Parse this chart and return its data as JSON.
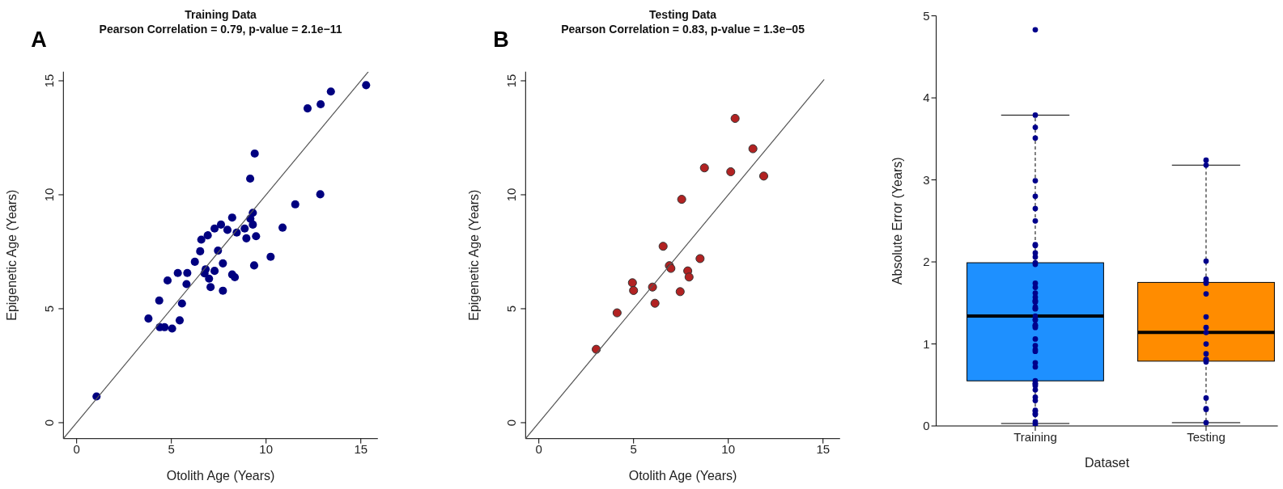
{
  "chart_data": [
    {
      "type": "scatter",
      "title": "Training Data",
      "subtitle": "Pearson Correlation = 0.79, p-value = 2.1e−11",
      "xlabel": "Otolith Age (Years)",
      "ylabel": "Epigenetic Age (Years)",
      "annotations": [
        "A"
      ],
      "xlim": [
        -0.7,
        15.9
      ],
      "ylim": [
        -0.7,
        15.4
      ],
      "xticks": [
        0,
        5,
        10,
        15
      ],
      "yticks": [
        0,
        5,
        10,
        15
      ],
      "series": [
        {
          "marker": "circle",
          "color": "#000080",
          "x": [
            1.05,
            3.79,
            4.36,
            4.39,
            4.64,
            5.04,
            5.44,
            5.56,
            4.8,
            5.34,
            5.84,
            5.8,
            6.24,
            6.52,
            6.58,
            6.92,
            7.28,
            7.62,
            7.96,
            8.21,
            8.45,
            8.87,
            8.96,
            9.17,
            9.3,
            9.3,
            9.47,
            7.46,
            7.72,
            6.81,
            6.75,
            6.99,
            7.28,
            7.07,
            7.72,
            8.21,
            8.35,
            9.37,
            10.24,
            10.87,
            11.54,
            12.86,
            9.16,
            9.4,
            12.19,
            12.88,
            13.42,
            15.28
          ],
          "values": [
            1.15,
            4.57,
            5.36,
            4.19,
            4.19,
            4.13,
            4.49,
            5.23,
            6.24,
            6.57,
            6.57,
            6.08,
            7.06,
            7.52,
            8.03,
            8.22,
            8.52,
            8.69,
            8.46,
            9.0,
            8.34,
            8.52,
            8.09,
            8.95,
            9.21,
            8.69,
            8.18,
            7.55,
            6.99,
            6.73,
            6.55,
            6.32,
            6.66,
            5.95,
            5.79,
            6.5,
            6.38,
            6.9,
            7.28,
            8.56,
            9.58,
            10.02,
            10.71,
            11.81,
            13.79,
            13.97,
            14.53,
            14.81
          ]
        },
        {
          "type": "line",
          "color": "#555555",
          "x": [
            -0.7,
            15.4
          ],
          "values": [
            -0.7,
            15.4
          ]
        }
      ]
    },
    {
      "type": "scatter",
      "title": "Testing Data",
      "subtitle": "Pearson Correlation = 0.83, p-value = 1.3e−05",
      "xlabel": "Otolith Age (Years)",
      "ylabel": "Epigenetic Age (Years)",
      "annotations": [
        "B"
      ],
      "xlim": [
        -0.7,
        15.9
      ],
      "ylim": [
        -0.7,
        15.4
      ],
      "xticks": [
        0,
        5,
        10,
        15
      ],
      "yticks": [
        0,
        5,
        10,
        15
      ],
      "series": [
        {
          "marker": "circle",
          "color": "#b22222",
          "x": [
            3.03,
            4.13,
            4.94,
            5.0,
            6.0,
            6.13,
            6.56,
            6.89,
            6.97,
            7.46,
            7.54,
            7.86,
            7.93,
            8.51,
            8.74,
            10.13,
            10.36,
            11.3,
            11.87
          ],
          "values": [
            3.22,
            4.82,
            6.14,
            5.8,
            5.95,
            5.24,
            7.74,
            6.89,
            6.77,
            5.75,
            9.8,
            6.66,
            6.39,
            7.2,
            11.18,
            11.01,
            13.35,
            12.02,
            10.82
          ]
        },
        {
          "type": "line",
          "color": "#555555",
          "x": [
            -0.7,
            15.06
          ],
          "values": [
            -0.7,
            15.06
          ]
        }
      ]
    },
    {
      "type": "box",
      "xlabel": "Dataset",
      "ylabel": "Absolute Error (Years)",
      "categories": [
        "Training",
        "Testing"
      ],
      "colors": [
        "#1e90ff",
        "#ff8c00"
      ],
      "boxes": [
        {
          "low": 0.03,
          "q1": 0.55,
          "median": 1.34,
          "q3": 1.99,
          "high": 3.79
        },
        {
          "low": 0.04,
          "q1": 0.79,
          "median": 1.14,
          "q3": 1.75,
          "high": 3.18
        }
      ],
      "ylim": [
        0,
        5
      ],
      "yticks": [
        0,
        1,
        2,
        3,
        4,
        5
      ],
      "series": [
        {
          "type": "scatter",
          "marker": "circle",
          "color": "#00008b",
          "x": [
            "Training",
            "Training",
            "Training",
            "Training",
            "Training",
            "Training",
            "Training",
            "Training",
            "Training",
            "Training",
            "Training",
            "Training",
            "Training",
            "Training",
            "Training",
            "Training",
            "Training",
            "Training",
            "Training",
            "Training",
            "Training",
            "Training",
            "Training",
            "Training",
            "Training",
            "Training",
            "Training",
            "Training",
            "Training",
            "Training",
            "Training",
            "Training",
            "Training",
            "Training",
            "Training",
            "Training",
            "Training",
            "Training",
            "Training",
            "Training",
            "Training",
            "Training",
            "Training",
            "Training",
            "Training",
            "Training",
            "Training",
            "Training",
            "Training",
            "Testing",
            "Testing",
            "Testing",
            "Testing",
            "Testing",
            "Testing",
            "Testing",
            "Testing",
            "Testing",
            "Testing",
            "Testing",
            "Testing",
            "Testing",
            "Testing",
            "Testing",
            "Testing",
            "Testing",
            "Testing",
            "Testing"
          ],
          "values": [
            4.83,
            3.79,
            3.64,
            3.51,
            2.99,
            2.8,
            2.65,
            2.5,
            2.21,
            2.2,
            2.11,
            2.06,
            1.99,
            1.97,
            1.74,
            1.69,
            1.62,
            1.57,
            1.53,
            1.52,
            1.51,
            1.45,
            1.43,
            1.43,
            1.34,
            1.3,
            1.29,
            1.23,
            1.22,
            1.2,
            1.06,
            0.98,
            0.93,
            0.91,
            0.77,
            0.72,
            0.55,
            0.52,
            0.51,
            0.49,
            0.44,
            0.35,
            0.31,
            0.19,
            0.18,
            0.15,
            0.14,
            0.05,
            0.02,
            3.24,
            3.18,
            2.01,
            1.79,
            1.76,
            1.74,
            1.61,
            1.33,
            1.2,
            1.14,
            1.0,
            0.88,
            0.81,
            0.81,
            0.78,
            0.34,
            0.2,
            0.21,
            0.04
          ]
        }
      ]
    }
  ]
}
